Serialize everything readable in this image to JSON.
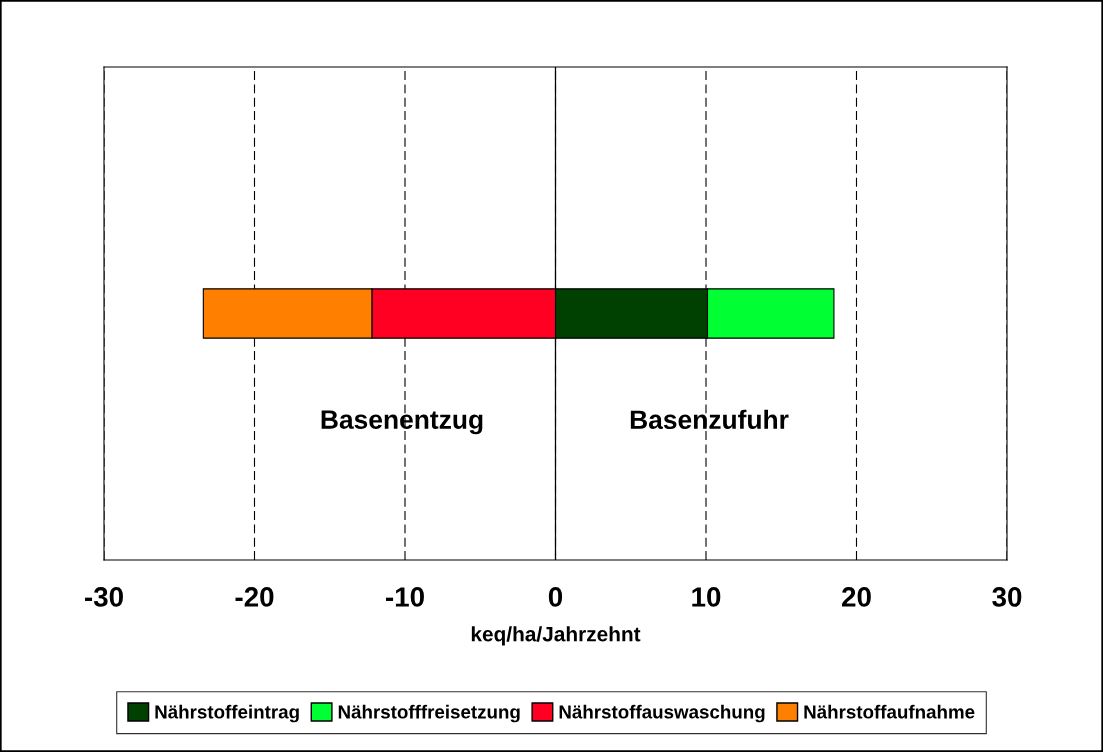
{
  "chart_data": {
    "type": "bar",
    "orientation": "horizontal",
    "stacked": true,
    "categories": [
      null
    ],
    "series": [
      {
        "name": "Nährstoffeintrag",
        "color": "#004000",
        "values": [
          10.1
        ]
      },
      {
        "name": "Nährstofffreisetzung",
        "color": "#00ff33",
        "values": [
          8.4
        ]
      },
      {
        "name": "Nährstoffauswaschung",
        "color": "#ff0022",
        "values": [
          -12.2
        ]
      },
      {
        "name": "Nährstoffaufnahme",
        "color": "#ff8000",
        "values": [
          -11.2
        ]
      }
    ],
    "xlabel": "keq/ha/Jahrzehnt",
    "xlim": [
      -30,
      30
    ],
    "xticks": [
      -30,
      -20,
      -10,
      0,
      10,
      20,
      30
    ],
    "grid": "x",
    "ref_lines": [
      {
        "axis": "x",
        "value": 0,
        "line_style": "solid",
        "color": "#000000"
      }
    ],
    "annotations": [
      "Basenentzug",
      "Basenzufuhr"
    ],
    "legend": "bottom"
  }
}
